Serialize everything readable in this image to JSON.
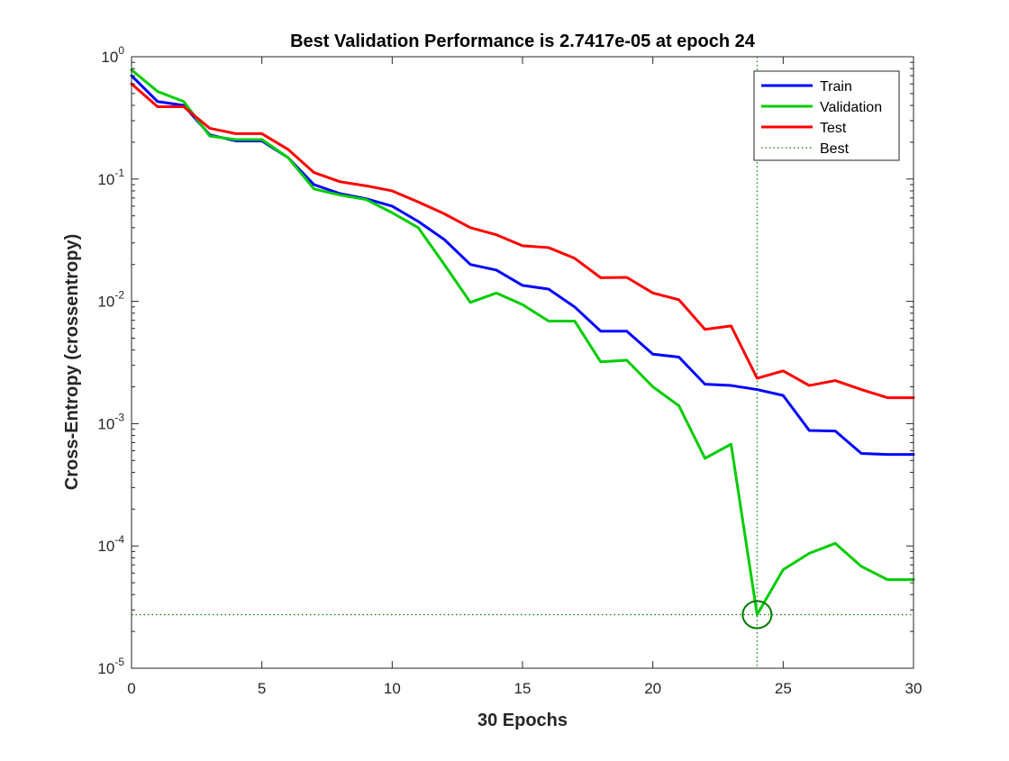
{
  "chart_data": {
    "type": "line",
    "title": "Best Validation Performance is 2.7417e-05 at epoch 24",
    "xlabel": "30 Epochs",
    "ylabel": "Cross-Entropy  (crossentropy)",
    "xlim": [
      0,
      30
    ],
    "ylim": [
      1e-05,
      1
    ],
    "yscale": "log",
    "grid": false,
    "legend_position": "top-right",
    "x_ticks": [
      "0",
      "5",
      "10",
      "15",
      "20",
      "25",
      "30"
    ],
    "x_tick_values": [
      0,
      5,
      10,
      15,
      20,
      25,
      30
    ],
    "y_ticks": [
      {
        "base": "10",
        "exp": "0",
        "value": 1
      },
      {
        "base": "10",
        "exp": "-1",
        "value": 0.1
      },
      {
        "base": "10",
        "exp": "-2",
        "value": 0.01
      },
      {
        "base": "10",
        "exp": "-3",
        "value": 0.001
      },
      {
        "base": "10",
        "exp": "-4",
        "value": 0.0001
      },
      {
        "base": "10",
        "exp": "-5",
        "value": 1e-05
      }
    ],
    "x": [
      0,
      1,
      2,
      3,
      4,
      5,
      6,
      7,
      8,
      9,
      10,
      11,
      12,
      13,
      14,
      15,
      16,
      17,
      18,
      19,
      20,
      21,
      22,
      23,
      24,
      25,
      26,
      27,
      28,
      29,
      30
    ],
    "series": [
      {
        "name": "Train",
        "color": "#0000ff",
        "style": "solid",
        "values": [
          0.7,
          0.43,
          0.4,
          0.23,
          0.205,
          0.205,
          0.15,
          0.09,
          0.076,
          0.069,
          0.06,
          0.045,
          0.032,
          0.02,
          0.018,
          0.0135,
          0.0126,
          0.009,
          0.0057,
          0.0057,
          0.0037,
          0.0035,
          0.0021,
          0.00205,
          0.0019,
          0.0017,
          0.00088,
          0.00087,
          0.00057,
          0.00056,
          0.00056
        ]
      },
      {
        "name": "Validation",
        "color": "#00cc00",
        "style": "solid",
        "values": [
          0.78,
          0.52,
          0.43,
          0.225,
          0.21,
          0.21,
          0.15,
          0.083,
          0.074,
          0.068,
          0.053,
          0.04,
          0.02,
          0.0098,
          0.0117,
          0.0094,
          0.0069,
          0.0069,
          0.0032,
          0.0033,
          0.002,
          0.0014,
          0.00052,
          0.00068,
          2.7417e-05,
          6.4e-05,
          8.7e-05,
          0.000105,
          6.8e-05,
          5.3e-05,
          5.3e-05
        ]
      },
      {
        "name": "Test",
        "color": "#ff0000",
        "style": "solid",
        "values": [
          0.6,
          0.39,
          0.39,
          0.26,
          0.235,
          0.235,
          0.175,
          0.113,
          0.095,
          0.088,
          0.08,
          0.065,
          0.052,
          0.04,
          0.035,
          0.0285,
          0.0275,
          0.0225,
          0.0156,
          0.0157,
          0.0117,
          0.0103,
          0.0059,
          0.0063,
          0.00235,
          0.0027,
          0.00205,
          0.00225,
          0.0019,
          0.00163,
          0.00163
        ]
      }
    ],
    "best": {
      "name": "Best",
      "color": "#008000",
      "style": "dotted",
      "epoch": 24,
      "value": 2.7417e-05
    },
    "legend": [
      "Train",
      "Validation",
      "Test",
      "Best"
    ]
  }
}
